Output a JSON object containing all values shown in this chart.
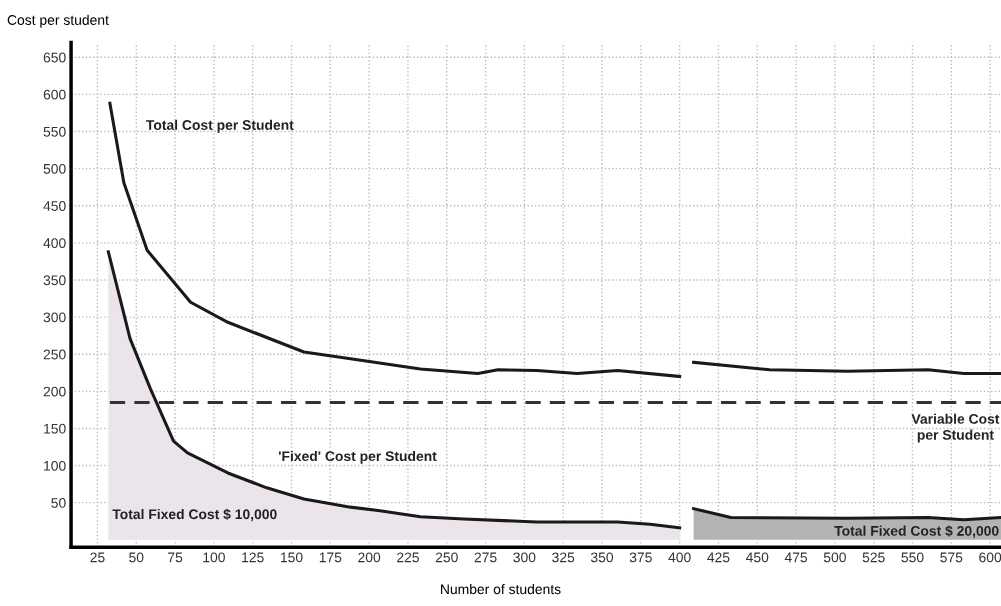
{
  "chart_data": {
    "type": "line",
    "xlabel": "Number of students",
    "ylabel": "Cost per student",
    "xlim": [
      8,
      607
    ],
    "ylim": [
      -10,
      670
    ],
    "xticks": [
      25,
      50,
      75,
      100,
      125,
      150,
      175,
      200,
      225,
      250,
      275,
      300,
      325,
      350,
      375,
      400,
      425,
      450,
      475,
      500,
      525,
      550,
      575,
      600
    ],
    "yticks": [
      50,
      100,
      150,
      200,
      250,
      300,
      350,
      400,
      450,
      500,
      550,
      600,
      650
    ],
    "grid": true,
    "marker": "none",
    "series": [
      {
        "type": "area",
        "color": "#ebe5eb",
        "x": [
          32,
          46,
          59,
          74,
          83,
          109,
          134,
          158,
          188,
          207,
          233,
          261,
          308,
          360,
          381,
          400
        ],
        "values": [
          388,
          271,
          204,
          133,
          117,
          90,
          70,
          55,
          44,
          39,
          31,
          28,
          24,
          24,
          21,
          16
        ]
      },
      {
        "type": "area",
        "color": "#b3b3b3",
        "x": [
          409,
          433,
          508,
          560,
          583,
          607
        ],
        "values": [
          42,
          30,
          29,
          30,
          27,
          30
        ]
      },
      {
        "color": "#1a1a1a",
        "x": [
          33,
          42,
          57,
          85,
          109,
          158,
          188,
          233,
          270,
          283,
          308,
          334,
          360,
          400
        ],
        "values": [
          588,
          481,
          390,
          320,
          293,
          253,
          244,
          230,
          224,
          229,
          228,
          224,
          228,
          220
        ]
      },
      {
        "color": "#1a1a1a",
        "x": [
          409,
          458,
          508,
          560,
          583,
          607
        ],
        "values": [
          239,
          229,
          227,
          229,
          224,
          224
        ]
      },
      {
        "color": "#333333",
        "line_style": "dashed",
        "x": [
          33,
          607
        ],
        "values": [
          185,
          185
        ]
      }
    ],
    "annotations": [
      "Total Cost per Student",
      "'Fixed' Cost per Student",
      "Total Fixed Cost $ 10,000",
      "Total Fixed Cost $ 20,000",
      "Variable Cost\nper Student"
    ]
  }
}
